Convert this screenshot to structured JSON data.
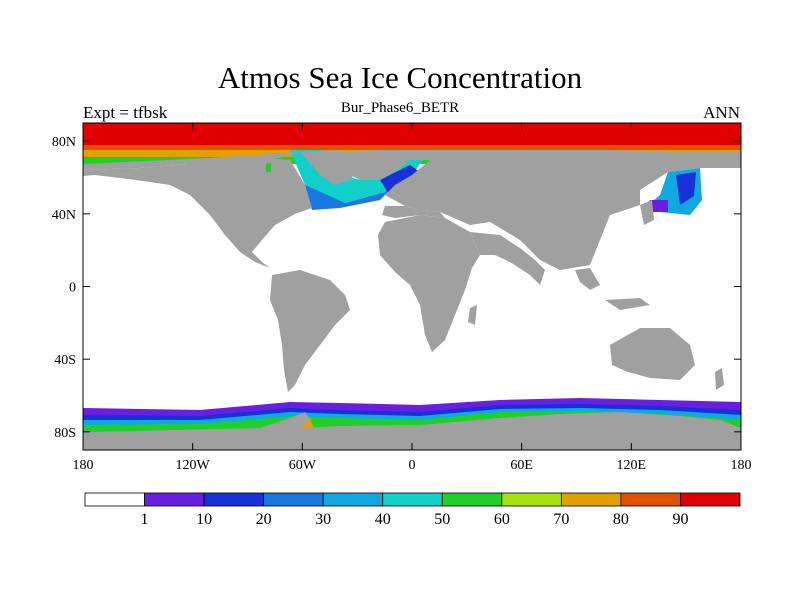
{
  "title": "Atmos Sea Ice Concentration",
  "subtitle": "Bur_Phase6_BETR",
  "left_label": "Expt = tfbsk",
  "right_label": "ANN",
  "map": {
    "projection": "cylindrical-equidistant",
    "lon_range": [
      -180,
      180
    ],
    "lat_range": [
      -90,
      90
    ],
    "x_ticks": [
      {
        "value": -180,
        "label": "180"
      },
      {
        "value": -120,
        "label": "120W"
      },
      {
        "value": -60,
        "label": "60W"
      },
      {
        "value": 0,
        "label": "0"
      },
      {
        "value": 60,
        "label": "60E"
      },
      {
        "value": 120,
        "label": "120E"
      },
      {
        "value": 180,
        "label": "180"
      }
    ],
    "y_ticks": [
      {
        "value": 80,
        "label": "80N"
      },
      {
        "value": 40,
        "label": "40N"
      },
      {
        "value": 0,
        "label": "0"
      },
      {
        "value": -40,
        "label": "40S"
      },
      {
        "value": -80,
        "label": "80S"
      }
    ],
    "land_color": "#a0a0a0",
    "ocean_color": "#ffffff"
  },
  "colorbar": {
    "colors": [
      "#ffffff",
      "#6a1ee0",
      "#1830d8",
      "#1878e0",
      "#10a8e0",
      "#10d0c8",
      "#20d028",
      "#a8e010",
      "#e0a000",
      "#e05000",
      "#e00000"
    ],
    "labels": [
      "1",
      "10",
      "20",
      "30",
      "40",
      "50",
      "60",
      "70",
      "80",
      "90"
    ]
  }
}
